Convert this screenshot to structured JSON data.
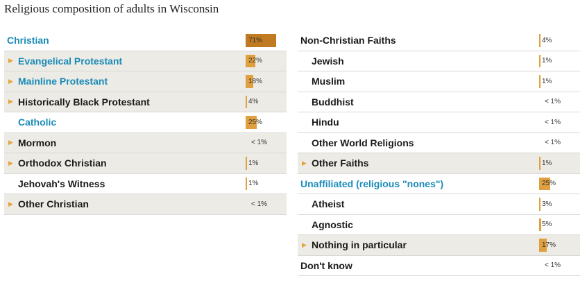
{
  "title": "Religious composition of adults in Wisconsin",
  "chart_data": {
    "type": "table",
    "title": "Religious composition of adults in Wisconsin",
    "columns": [
      [
        {
          "label": "Christian",
          "value": "71%",
          "pct": 71,
          "level": 0,
          "arrow": false,
          "blue": true,
          "shaded": false
        },
        {
          "label": "Evangelical Protestant",
          "value": "22%",
          "pct": 22,
          "level": 1,
          "arrow": true,
          "blue": true,
          "shaded": true
        },
        {
          "label": "Mainline Protestant",
          "value": "18%",
          "pct": 18,
          "level": 1,
          "arrow": true,
          "blue": true,
          "shaded": true
        },
        {
          "label": "Historically Black Protestant",
          "value": "4%",
          "pct": 4,
          "level": 1,
          "arrow": true,
          "blue": false,
          "shaded": true
        },
        {
          "label": "Catholic",
          "value": "25%",
          "pct": 25,
          "level": 1,
          "arrow": false,
          "blue": true,
          "shaded": false
        },
        {
          "label": "Mormon",
          "value": "< 1%",
          "pct": 0,
          "level": 1,
          "arrow": true,
          "blue": false,
          "shaded": true
        },
        {
          "label": "Orthodox Christian",
          "value": "1%",
          "pct": 1,
          "level": 1,
          "arrow": true,
          "blue": false,
          "shaded": true
        },
        {
          "label": "Jehovah's Witness",
          "value": "1%",
          "pct": 1,
          "level": 1,
          "arrow": false,
          "blue": false,
          "shaded": false
        },
        {
          "label": "Other Christian",
          "value": "< 1%",
          "pct": 0,
          "level": 1,
          "arrow": true,
          "blue": false,
          "shaded": true
        }
      ],
      [
        {
          "label": "Non-Christian Faiths",
          "value": "4%",
          "pct": 4,
          "level": 0,
          "arrow": false,
          "blue": false,
          "shaded": false
        },
        {
          "label": "Jewish",
          "value": "1%",
          "pct": 1,
          "level": 1,
          "arrow": false,
          "blue": false,
          "shaded": false
        },
        {
          "label": "Muslim",
          "value": "1%",
          "pct": 1,
          "level": 1,
          "arrow": false,
          "blue": false,
          "shaded": false
        },
        {
          "label": "Buddhist",
          "value": "< 1%",
          "pct": 0,
          "level": 1,
          "arrow": false,
          "blue": false,
          "shaded": false
        },
        {
          "label": "Hindu",
          "value": "< 1%",
          "pct": 0,
          "level": 1,
          "arrow": false,
          "blue": false,
          "shaded": false
        },
        {
          "label": "Other World Religions",
          "value": "< 1%",
          "pct": 0,
          "level": 1,
          "arrow": false,
          "blue": false,
          "shaded": false
        },
        {
          "label": "Other Faiths",
          "value": "1%",
          "pct": 1,
          "level": 1,
          "arrow": true,
          "blue": false,
          "shaded": true
        },
        {
          "label": "Unaffiliated (religious \"nones\")",
          "value": "25%",
          "pct": 25,
          "level": 0,
          "arrow": false,
          "blue": true,
          "shaded": false
        },
        {
          "label": "Atheist",
          "value": "3%",
          "pct": 3,
          "level": 1,
          "arrow": false,
          "blue": false,
          "shaded": false
        },
        {
          "label": "Agnostic",
          "value": "5%",
          "pct": 5,
          "level": 1,
          "arrow": false,
          "blue": false,
          "shaded": false
        },
        {
          "label": "Nothing in particular",
          "value": "17%",
          "pct": 17,
          "level": 1,
          "arrow": true,
          "blue": false,
          "shaded": true
        },
        {
          "label": "Don't know",
          "value": "< 1%",
          "pct": 0,
          "level": 0,
          "arrow": false,
          "blue": false,
          "shaded": false
        }
      ]
    ],
    "colors": {
      "bar": "#e0a03f",
      "bar_total": "#bf7a22",
      "label_blue": "#1a8bb8",
      "arrow": "#e8a33d",
      "row_shade": "#ecebe5"
    }
  }
}
